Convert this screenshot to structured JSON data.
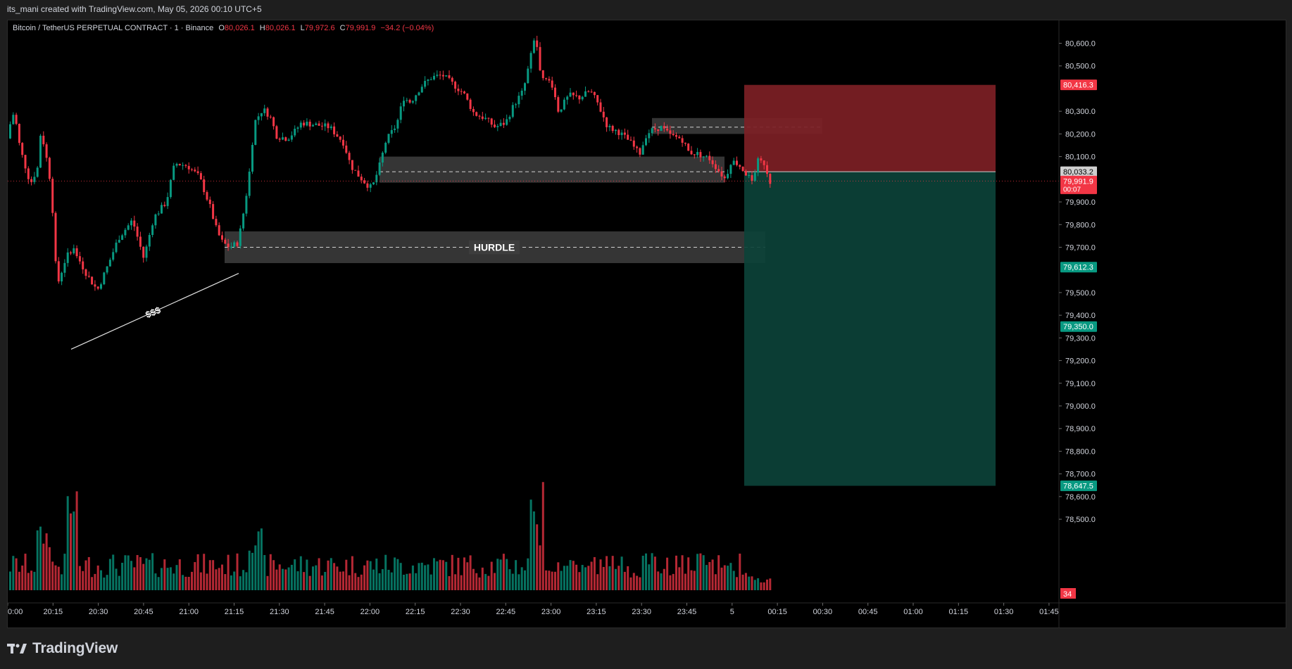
{
  "header": {
    "credit": "its_mani created with TradingView.com, May 05, 2026 00:10 UTC+5"
  },
  "legend": {
    "symbol": "Bitcoin / TetherUS PERPETUAL CONTRACT · 1 · Binance",
    "o_label": "O",
    "o": "80,026.1",
    "h_label": "H",
    "h": "80,026.1",
    "l_label": "L",
    "l": "79,972.6",
    "c_label": "C",
    "c": "79,991.9",
    "change": "−34.2 (−0.04%)"
  },
  "brand": {
    "name": "TradingView"
  },
  "colors": {
    "up": "#089981",
    "down": "#f23645",
    "background": "#000000",
    "stop_zone": "#7d1f25",
    "target_zone": "#0c4238",
    "zone_gray": "#4a4a4a"
  },
  "chart_data": {
    "type": "candlestick",
    "symbol": "Bitcoin / TetherUS PERPETUAL CONTRACT",
    "interval": "1",
    "exchange": "Binance",
    "ylim": [
      78450,
      80680
    ],
    "y_ticks": [
      {
        "value": 80600,
        "label": "80,600.0"
      },
      {
        "value": 80500,
        "label": "80,500.0"
      },
      {
        "value": 80300,
        "label": "80,300.0"
      },
      {
        "value": 80200,
        "label": "80,200.0"
      },
      {
        "value": 80100,
        "label": "80,100.0"
      },
      {
        "value": 79900,
        "label": "79,900.0"
      },
      {
        "value": 79800,
        "label": "79,800.0"
      },
      {
        "value": 79700,
        "label": "79,700.0"
      },
      {
        "value": 79500,
        "label": "79,500.0"
      },
      {
        "value": 79400,
        "label": "79,400.0"
      },
      {
        "value": 79300,
        "label": "79,300.0"
      },
      {
        "value": 79200,
        "label": "79,200.0"
      },
      {
        "value": 79100,
        "label": "79,100.0"
      },
      {
        "value": 79000,
        "label": "79,000.0"
      },
      {
        "value": 78900,
        "label": "78,900.0"
      },
      {
        "value": 78800,
        "label": "78,800.0"
      },
      {
        "value": 78700,
        "label": "78,700.0"
      },
      {
        "value": 78600,
        "label": "78,600.0"
      },
      {
        "value": 78500,
        "label": "78,500.0"
      }
    ],
    "x_ticks": [
      "0:00",
      "20:15",
      "20:30",
      "20:45",
      "21:00",
      "21:15",
      "21:30",
      "21:45",
      "22:00",
      "22:15",
      "22:30",
      "22:45",
      "23:00",
      "23:15",
      "23:30",
      "23:45",
      "5",
      "00:15",
      "00:30",
      "00:45",
      "01:00",
      "01:15",
      "01:30",
      "01:45"
    ],
    "price_labels": [
      {
        "value": 80416.3,
        "text": "80,416.3",
        "color": "#f23645"
      },
      {
        "value": 80033.2,
        "text": "80,033.2",
        "color": "#cfcfcf",
        "text_color": "#000000"
      },
      {
        "value": 79991.9,
        "text": "79,991.9",
        "sub": "00:07",
        "color": "#f23645"
      },
      {
        "value": 79612.3,
        "text": "79,612.3",
        "color": "#089981"
      },
      {
        "value": 79350.0,
        "text": "79,350.0",
        "color": "#089981"
      },
      {
        "value": 78647.5,
        "text": "78,647.5",
        "color": "#089981"
      }
    ],
    "volume_label": "34",
    "last_price": 79991.9,
    "annotations": {
      "hurdle_text": "HURDLE",
      "liquidity_text": "$$$"
    },
    "position": {
      "side": "short",
      "entry": 80033.2,
      "stop": 80416.3,
      "target": 78647.5
    },
    "zones": [
      {
        "top": 80270,
        "bottom": 80200,
        "mid": 80230
      },
      {
        "top": 80100,
        "bottom": 79985,
        "mid": 80033
      },
      {
        "top": 79770,
        "bottom": 79630,
        "mid": 79700
      }
    ]
  }
}
